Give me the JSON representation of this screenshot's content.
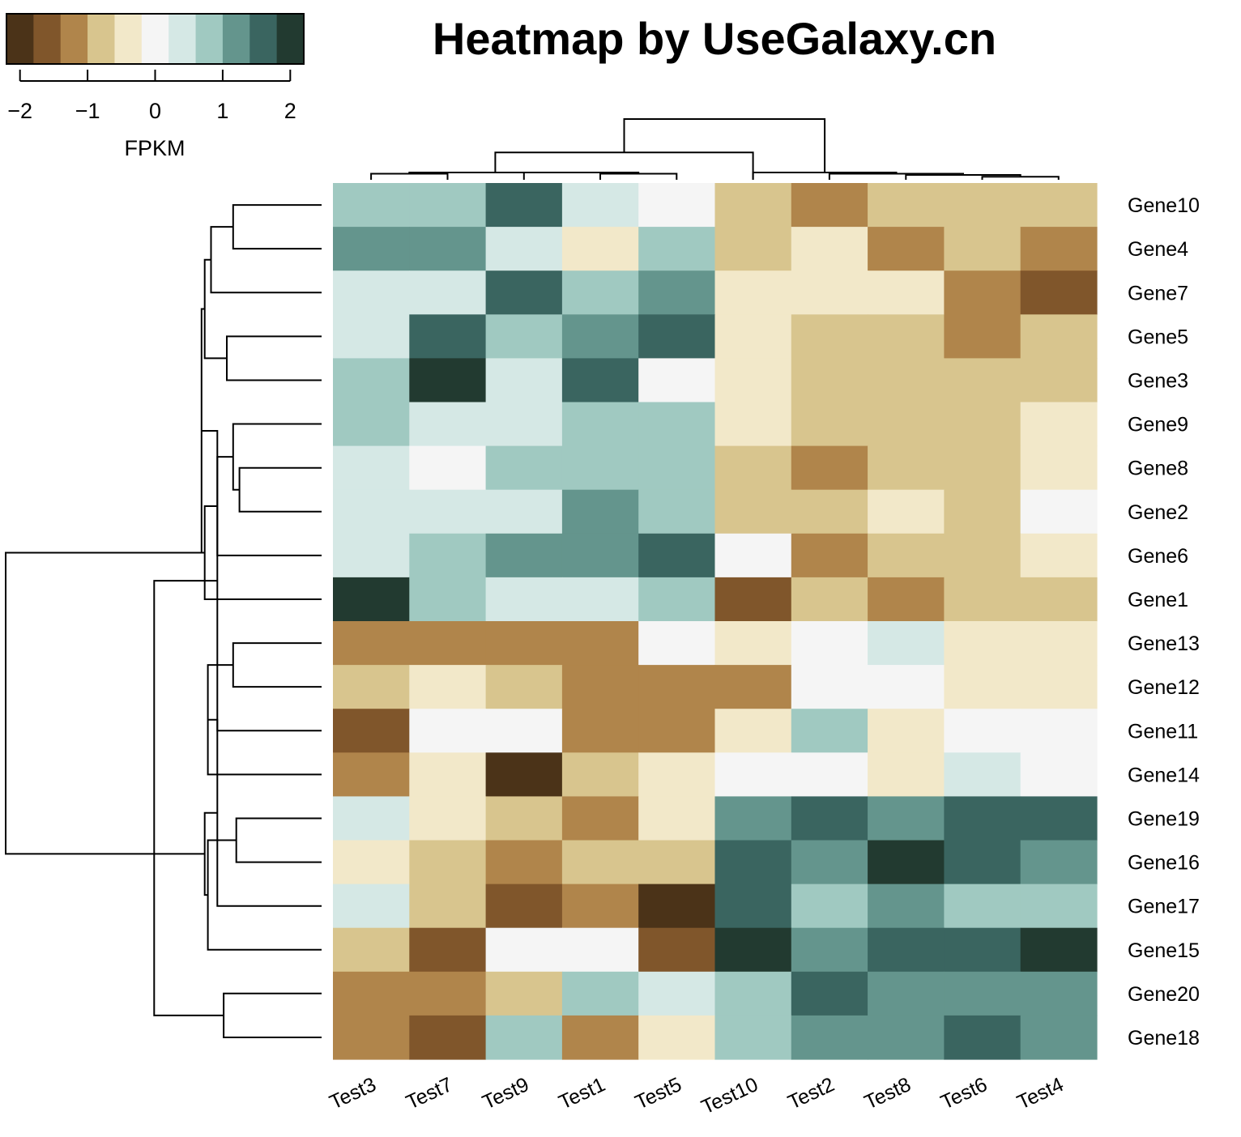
{
  "chart_data": {
    "type": "heatmap",
    "title": "Heatmap by UseGalaxy.cn",
    "columns": [
      "Test3",
      "Test7",
      "Test9",
      "Test1",
      "Test5",
      "Test10",
      "Test2",
      "Test8",
      "Test6",
      "Test4"
    ],
    "rows": [
      "Gene10",
      "Gene4",
      "Gene7",
      "Gene5",
      "Gene3",
      "Gene9",
      "Gene8",
      "Gene2",
      "Gene6",
      "Gene1",
      "Gene13",
      "Gene12",
      "Gene11",
      "Gene14",
      "Gene19",
      "Gene16",
      "Gene17",
      "Gene15",
      "Gene20",
      "Gene18"
    ],
    "values": [
      [
        0.8,
        0.8,
        1.6,
        0.4,
        0.0,
        -0.8,
        -1.2,
        -0.8,
        -0.8,
        -0.8
      ],
      [
        1.2,
        1.2,
        0.4,
        -0.4,
        0.8,
        -0.8,
        -0.4,
        -1.2,
        -0.8,
        -1.2
      ],
      [
        0.4,
        0.4,
        1.6,
        0.8,
        1.2,
        -0.4,
        -0.4,
        -0.4,
        -1.2,
        -1.6
      ],
      [
        0.4,
        1.6,
        0.8,
        1.2,
        1.6,
        -0.4,
        -0.8,
        -0.8,
        -1.2,
        -0.8
      ],
      [
        0.8,
        2.0,
        0.4,
        1.6,
        0.0,
        -0.4,
        -0.8,
        -0.8,
        -0.8,
        -0.8
      ],
      [
        0.8,
        0.4,
        0.4,
        0.8,
        0.8,
        -0.4,
        -0.8,
        -0.8,
        -0.8,
        -0.4
      ],
      [
        0.4,
        0.0,
        0.8,
        0.8,
        0.8,
        -0.8,
        -1.2,
        -0.8,
        -0.8,
        -0.4
      ],
      [
        0.4,
        0.4,
        0.4,
        1.2,
        0.8,
        -0.8,
        -0.8,
        -0.4,
        -0.8,
        0.0
      ],
      [
        0.4,
        0.8,
        1.2,
        1.2,
        1.6,
        0.0,
        -1.2,
        -0.8,
        -0.8,
        -0.4
      ],
      [
        2.0,
        0.8,
        0.4,
        0.4,
        0.8,
        -1.6,
        -0.8,
        -1.2,
        -0.8,
        -0.8
      ],
      [
        -1.2,
        -1.2,
        -1.2,
        -1.2,
        0.0,
        -0.4,
        0.0,
        0.4,
        -0.4,
        -0.4
      ],
      [
        -0.8,
        -0.4,
        -0.8,
        -1.2,
        -1.2,
        -1.2,
        0.0,
        0.0,
        -0.4,
        -0.4
      ],
      [
        -1.6,
        0.0,
        0.0,
        -1.2,
        -1.2,
        -0.4,
        0.8,
        -0.4,
        0.0,
        0.0
      ],
      [
        -1.2,
        -0.4,
        -2.0,
        -0.8,
        -0.4,
        0.0,
        0.0,
        -0.4,
        0.4,
        0.0
      ],
      [
        0.4,
        -0.4,
        -0.8,
        -1.2,
        -0.4,
        1.2,
        1.6,
        1.2,
        1.6,
        1.6
      ],
      [
        -0.4,
        -0.8,
        -1.2,
        -0.8,
        -0.8,
        1.6,
        1.2,
        2.0,
        1.6,
        1.2
      ],
      [
        0.4,
        -0.8,
        -1.6,
        -1.2,
        -2.0,
        1.6,
        0.8,
        1.2,
        0.8,
        0.8
      ],
      [
        -0.8,
        -1.6,
        0.0,
        0.0,
        -1.6,
        2.0,
        1.2,
        1.6,
        1.6,
        2.0
      ],
      [
        -1.2,
        -1.2,
        -0.8,
        0.8,
        0.4,
        0.8,
        1.6,
        1.2,
        1.2,
        1.2
      ],
      [
        -1.2,
        -1.6,
        0.8,
        -1.2,
        -0.4,
        0.8,
        1.2,
        1.2,
        1.6,
        1.2
      ]
    ],
    "color_scale": {
      "label": "FPKM",
      "range": [
        -2.2,
        2.2
      ],
      "ticks": [
        "−2",
        "−1",
        "0",
        "1",
        "2"
      ],
      "tick_values": [
        -2,
        -1,
        0,
        1,
        2
      ],
      "colors": [
        "#4b3318",
        "#80562b",
        "#b0854b",
        "#d8c58e",
        "#f2e8c9",
        "#f5f5f5",
        "#d5e8e5",
        "#a0c9c1",
        "#64958d",
        "#3a6560",
        "#223a30"
      ]
    },
    "col_dendrogram": [
      [
        0,
        1,
        0.1
      ],
      [
        3,
        4,
        0.1
      ],
      [
        2,
        11,
        0.12
      ],
      [
        10,
        12,
        0.12
      ],
      [
        13,
        5,
        0.45
      ],
      [
        8,
        9,
        0.05
      ],
      [
        7,
        15,
        0.08
      ],
      [
        6,
        16,
        0.1
      ],
      [
        5,
        17,
        0.12
      ],
      [
        14,
        18,
        1.0
      ]
    ],
    "row_dendrogram": [
      [
        0,
        1,
        0.28
      ],
      [
        20,
        2,
        0.35
      ],
      [
        3,
        4,
        0.3
      ],
      [
        21,
        22,
        0.37
      ],
      [
        6,
        7,
        0.26
      ],
      [
        5,
        24,
        0.28
      ],
      [
        25,
        8,
        0.33
      ],
      [
        9,
        26,
        0.37
      ],
      [
        23,
        27,
        0.38
      ],
      [
        10,
        11,
        0.28
      ],
      [
        28,
        12,
        0.33
      ],
      [
        29,
        13,
        0.36
      ],
      [
        14,
        15,
        0.27
      ],
      [
        31,
        16,
        0.33
      ],
      [
        32,
        17,
        0.36
      ],
      [
        18,
        19,
        0.31
      ],
      [
        33,
        34,
        0.37
      ],
      [
        30,
        35,
        0.53
      ],
      [
        27,
        36,
        1.0
      ]
    ]
  }
}
